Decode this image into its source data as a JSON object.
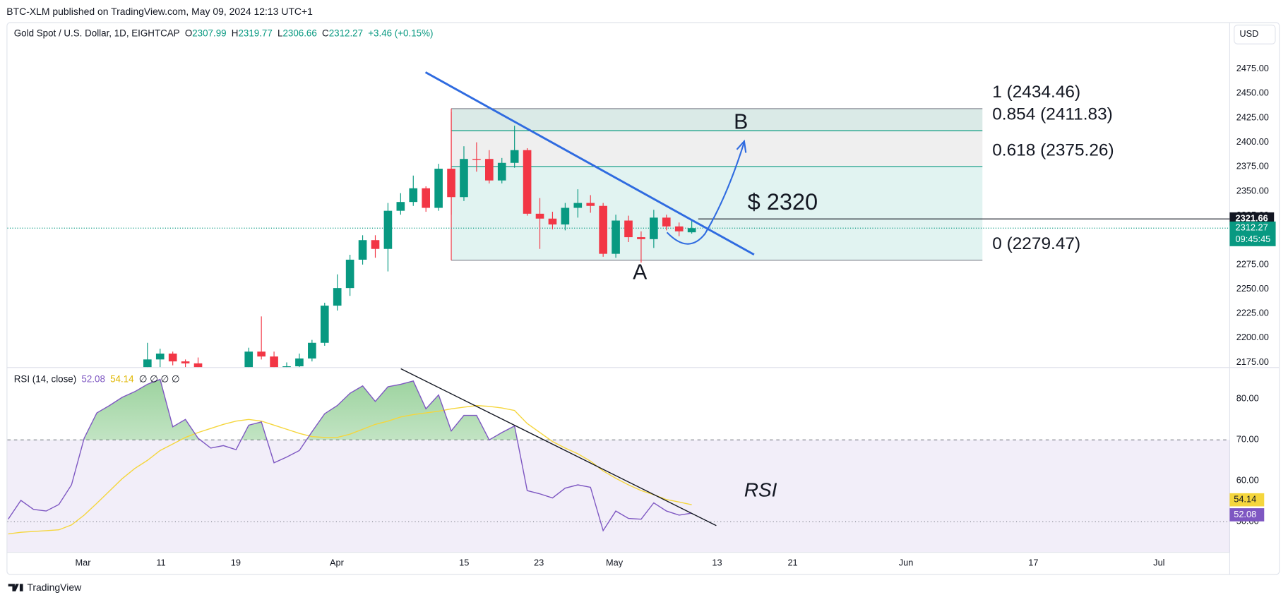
{
  "header": {
    "published": "BTC-XLM published on TradingView.com, May 09, 2024 12:13 UTC+1",
    "symbol": "Gold Spot / U.S. Dollar, 1D, EIGHTCAP",
    "ohlc": [
      {
        "key": "O",
        "value": 2307.99
      },
      {
        "key": "H",
        "value": 2319.77
      },
      {
        "key": "L",
        "value": 2306.66
      },
      {
        "key": "C",
        "value": 2312.27
      }
    ],
    "change": "+3.46 (+0.15%)",
    "currency": "USD"
  },
  "time_axis": [
    "Mar",
    "11",
    "19",
    "Apr",
    "15",
    "23",
    "May",
    "13",
    "21",
    "Jun",
    "17",
    "Jul"
  ],
  "chart_data": [
    {
      "type": "candlestick",
      "x": [
        "Mar 8",
        "Mar 11",
        "Mar 12",
        "Mar 13",
        "Mar 14",
        "Mar 15",
        "Mar 18",
        "Mar 19",
        "Mar 20",
        "Mar 21",
        "Mar 22",
        "Mar 25",
        "Mar 26",
        "Mar 27",
        "Mar 28",
        "Apr 1",
        "Apr 2",
        "Apr 3",
        "Apr 4",
        "Apr 5",
        "Apr 8",
        "Apr 9",
        "Apr 10",
        "Apr 11",
        "Apr 12",
        "Apr 15",
        "Apr 16",
        "Apr 17",
        "Apr 18",
        "Apr 19",
        "Apr 22",
        "Apr 23",
        "Apr 24",
        "Apr 25",
        "Apr 26",
        "Apr 29",
        "Apr 30",
        "May 1",
        "May 2",
        "May 3",
        "May 6",
        "May 7",
        "May 8",
        "May 9"
      ],
      "open": [
        2160,
        2178,
        2184,
        2176,
        2174,
        2163,
        2156,
        2160,
        2157,
        2186,
        2181,
        2166,
        2171,
        2179,
        2195,
        2233,
        2251,
        2280,
        2300,
        2291,
        2330,
        2339,
        2353,
        2333,
        2373,
        2344,
        2383,
        2383,
        2361,
        2379,
        2392,
        2327,
        2322,
        2316,
        2333,
        2338,
        2335,
        2286,
        2320,
        2303,
        2301,
        2323,
        2314,
        2307.99
      ],
      "high": [
        2195,
        2189,
        2186,
        2178,
        2180,
        2165,
        2163,
        2163,
        2190,
        2222,
        2186,
        2175,
        2184,
        2198,
        2236,
        2265,
        2285,
        2305,
        2305,
        2338,
        2348,
        2366,
        2355,
        2378,
        2431,
        2396,
        2400,
        2392,
        2384,
        2417,
        2394,
        2343,
        2329,
        2338,
        2352,
        2346,
        2338,
        2326,
        2325,
        2309,
        2331,
        2326,
        2318,
        2319.77
      ],
      "low": [
        2155,
        2170,
        2172,
        2160,
        2160,
        2146,
        2150,
        2147,
        2150,
        2178,
        2160,
        2164,
        2170,
        2176,
        2192,
        2228,
        2243,
        2275,
        2282,
        2268,
        2326,
        2335,
        2329,
        2330,
        2326,
        2340,
        2370,
        2358,
        2358,
        2374,
        2325,
        2291,
        2311,
        2310,
        2323,
        2328,
        2283,
        2282,
        2298,
        2277,
        2292,
        2310,
        2304,
        2306.66
      ],
      "close": [
        2178,
        2184,
        2176,
        2174,
        2163,
        2156,
        2160,
        2157,
        2186,
        2181,
        2166,
        2171,
        2179,
        2195,
        2233,
        2251,
        2280,
        2300,
        2291,
        2330,
        2339,
        2353,
        2333,
        2373,
        2344,
        2383,
        2382,
        2361,
        2379,
        2392,
        2327,
        2322,
        2316,
        2333,
        2338,
        2335,
        2286,
        2320,
        2303,
        2301,
        2323,
        2314,
        2309,
        2312.27
      ],
      "up_color": "#089981",
      "down_color": "#f23645",
      "ylim": [
        2171,
        2522
      ],
      "yticks": [
        {
          "value": 2175,
          "label": "2175.00"
        },
        {
          "value": 2200,
          "label": "2200.00"
        },
        {
          "value": 2225,
          "label": "2225.00"
        },
        {
          "value": 2250,
          "label": "2250.00"
        },
        {
          "value": 2275,
          "label": "2275.00"
        },
        {
          "value": 2300,
          "label": "2300.00"
        },
        {
          "value": 2325,
          "label": "2325.00"
        },
        {
          "value": 2350,
          "label": "2350.00"
        },
        {
          "value": 2375,
          "label": "2375.00"
        },
        {
          "value": 2400,
          "label": "2400.00"
        },
        {
          "value": 2425,
          "label": "2425.00"
        },
        {
          "value": 2450,
          "label": "2450.00"
        },
        {
          "value": 2475,
          "label": "2475.00"
        }
      ],
      "fib": [
        {
          "price": 2434.46,
          "label": "1 (2434.46)",
          "color": "#787b86"
        },
        {
          "price": 2411.83,
          "label": "0.854 (2411.83)",
          "color": "#089981"
        },
        {
          "price": 2375.26,
          "label": "0.618 (2375.26)",
          "color": "#089981"
        },
        {
          "price": 2279.47,
          "label": "0 (2279.47)",
          "color": "#787b86"
        }
      ],
      "price_line": {
        "value": 2321.66,
        "label": "2321.66"
      },
      "last_price": {
        "value": 2312.27,
        "label": "2312.27",
        "countdown": "09:45:45"
      },
      "annotations": [
        "B",
        "A",
        "$ 2320"
      ]
    },
    {
      "type": "line",
      "title": "RSI (14, close)",
      "extra": "∅ ∅ ∅ ∅",
      "annotation": "RSI",
      "x": [
        "Feb 22",
        "Feb 23",
        "Feb 26",
        "Feb 27",
        "Feb 28",
        "Feb 29",
        "Mar 1",
        "Mar 4",
        "Mar 5",
        "Mar 6",
        "Mar 7",
        "Mar 8",
        "Mar 11",
        "Mar 12",
        "Mar 13",
        "Mar 14",
        "Mar 15",
        "Mar 18",
        "Mar 19",
        "Mar 20",
        "Mar 21",
        "Mar 22",
        "Mar 25",
        "Mar 26",
        "Mar 27",
        "Mar 28",
        "Apr 1",
        "Apr 2",
        "Apr 3",
        "Apr 4",
        "Apr 5",
        "Apr 8",
        "Apr 9",
        "Apr 10",
        "Apr 11",
        "Apr 12",
        "Apr 15",
        "Apr 16",
        "Apr 17",
        "Apr 18",
        "Apr 19",
        "Apr 22",
        "Apr 23",
        "Apr 24",
        "Apr 25",
        "Apr 26",
        "Apr 29",
        "Apr 30",
        "May 1",
        "May 2",
        "May 3",
        "May 6",
        "May 7",
        "May 8",
        "May 9"
      ],
      "series": [
        {
          "color": "#7e57c2",
          "values": [
            50.6,
            55.2,
            53,
            52.6,
            54.2,
            59,
            70.4,
            76.6,
            78.4,
            80.4,
            81.8,
            83.6,
            84.8,
            73.2,
            75,
            70.4,
            68,
            68.6,
            67.6,
            73.6,
            74.4,
            64.4,
            65.8,
            67.4,
            72,
            76.4,
            78.4,
            81.4,
            83.2,
            79.4,
            83,
            83.6,
            84.4,
            77.6,
            81,
            72.2,
            76,
            76,
            70,
            71.8,
            73.4,
            57.6,
            56.8,
            55.8,
            58.2,
            59,
            58.4,
            47.8,
            52.6,
            50.8,
            50.6,
            54.6,
            52.6,
            51.6,
            52.08
          ]
        },
        {
          "color": "#f5d63d",
          "values": [
            47,
            47.4,
            47.6,
            47.8,
            48,
            49.2,
            51.6,
            54.5,
            57.5,
            60.5,
            63,
            65,
            67.4,
            69,
            70.6,
            71.8,
            72.8,
            73.8,
            74.6,
            75,
            74.6,
            73.6,
            72.6,
            71.6,
            70.8,
            70.6,
            70.6,
            71.4,
            72.6,
            73.8,
            74.6,
            75.6,
            76.2,
            76.6,
            77,
            77.6,
            78,
            78.4,
            78.2,
            77.8,
            77.2,
            74,
            71.8,
            69.6,
            68,
            66.6,
            64.8,
            62.4,
            60.6,
            59,
            57.6,
            56.6,
            55.4,
            54.8,
            54.14
          ]
        }
      ],
      "band": [
        30,
        70
      ],
      "middle": 50,
      "ylim": [
        42.6,
        87.6
      ],
      "yticks": [
        {
          "value": 50,
          "label": "50.00"
        },
        {
          "value": 60,
          "label": "60.00"
        },
        {
          "value": 70,
          "label": "70.00"
        },
        {
          "value": 80,
          "label": "80.00"
        }
      ]
    }
  ],
  "footer": "TradingView"
}
